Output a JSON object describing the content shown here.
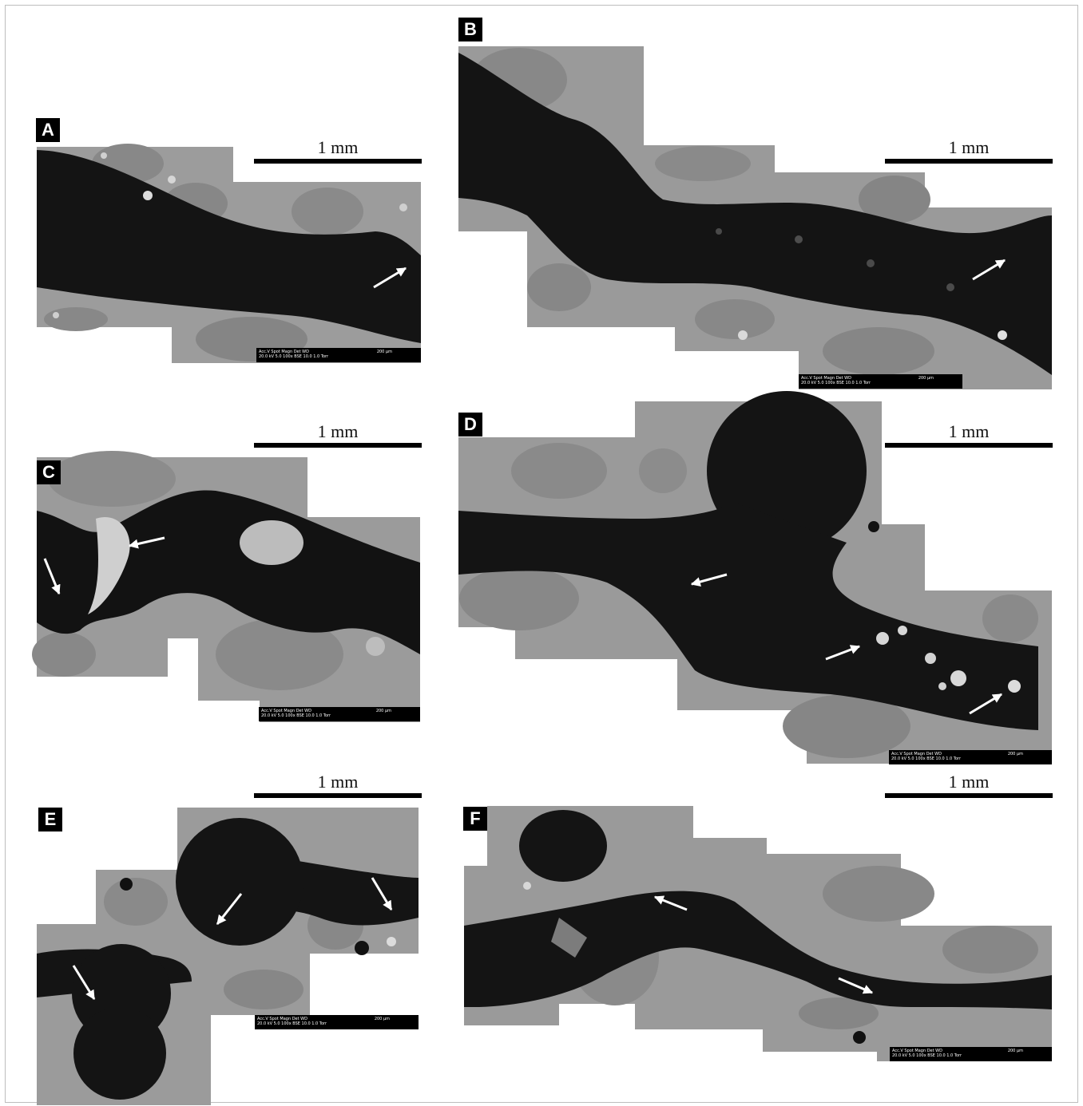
{
  "figure": {
    "panels": [
      {
        "id": "A",
        "label": "A",
        "scale_text": "1 mm",
        "databar": {
          "row1": "Acc.V  Spot Magn    Det  WD",
          "row2": "20.0 kV 5.0   100x    BSE 10.0   1.0 Torr",
          "micron": "200 µm"
        }
      },
      {
        "id": "B",
        "label": "B",
        "scale_text": "1 mm",
        "databar": {
          "row1": "Acc.V  Spot Magn    Det  WD",
          "row2": "20.0 kV 5.0   100x    BSE 10.0   1.0 Torr",
          "micron": "200 µm"
        }
      },
      {
        "id": "C",
        "label": "C",
        "scale_text": "1 mm",
        "databar": {
          "row1": "Acc.V  Spot Magn    Det  WD",
          "row2": "20.0 kV 5.0   100x    BSE 10.0   1.0 Torr",
          "micron": "200 µm"
        }
      },
      {
        "id": "D",
        "label": "D",
        "scale_text": "1 mm",
        "databar": {
          "row1": "Acc.V  Spot Magn    Det  WD",
          "row2": "20.0 kV 5.0   100x    BSE 10.0   1.0 Torr",
          "micron": "200 µm"
        }
      },
      {
        "id": "E",
        "label": "E",
        "scale_text": "1 mm",
        "databar": {
          "row1": "Acc.V  Spot Magn    Det  WD",
          "row2": "20.0 kV 5.0   100x    BSE 10.0   1.0 Torr",
          "micron": "200 µm"
        }
      },
      {
        "id": "F",
        "label": "F",
        "scale_text": "1 mm",
        "databar": {
          "row1": "Acc.V  Spot Magn    Det  WD",
          "row2": "20.0 kV 5.0   100x    BSE 10.0   1.0 Torr",
          "micron": "200 µm"
        }
      }
    ]
  },
  "colors": {
    "matrix": "#9a9a9a",
    "aggregate": "#7f7f7f",
    "pore": "#141414",
    "deposit": "#d0d0d0",
    "arrow": "#ffffff",
    "border": "#bdbdbd"
  }
}
